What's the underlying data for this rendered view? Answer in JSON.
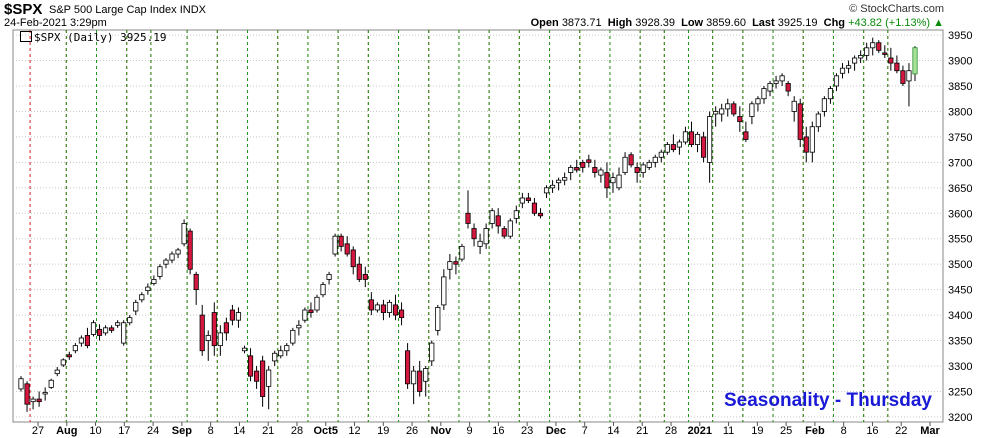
{
  "header": {
    "symbol": "$SPX",
    "name": "S&P 500 Large Cap Index",
    "exchange": "INDX",
    "datetime": "24-Feb-2021 3:29pm",
    "brand": "© StockCharts.com",
    "open_label": "Open",
    "open": "3873.71",
    "high_label": "High",
    "high": "3928.39",
    "low_label": "Low",
    "low": "3859.60",
    "last_label": "Last",
    "last": "3925.19",
    "chg_label": "Chg",
    "chg": "+43.82 (+1.13%)",
    "legend": "$SPX (Daily) 3925.19"
  },
  "annotation": "Seasonality - Thursday",
  "colors": {
    "up_fill": "#ffffff",
    "down_fill": "#d3173f",
    "latest_fill": "#a6e39a",
    "monday_line": "#d61e1e",
    "friday_line": "#1f9a1f"
  },
  "chart_data": {
    "type": "candlestick",
    "title": "$SPX (Daily) 3925.19",
    "ylim": [
      3190,
      3960
    ],
    "y_ticks": [
      3200,
      3250,
      3300,
      3350,
      3400,
      3450,
      3500,
      3550,
      3600,
      3650,
      3700,
      3750,
      3800,
      3850,
      3900,
      3950
    ],
    "x_ticks": [
      "27",
      "Aug",
      "10",
      "17",
      "24",
      "Sep",
      "8",
      "14",
      "21",
      "28",
      "Oct5",
      "12",
      "19",
      "26",
      "Nov",
      "9",
      "16",
      "23",
      "Dec",
      "7",
      "14",
      "21",
      "28",
      "2021",
      "11",
      "19",
      "25",
      "Feb",
      "8",
      "16",
      "22",
      "Mar"
    ],
    "grid": true,
    "vertical_markers": "red dashed line at each week start, green dashed line at each week end",
    "candles": [
      [
        3255,
        3280,
        3250,
        3275
      ],
      [
        3265,
        3270,
        3210,
        3225
      ],
      [
        3230,
        3240,
        3215,
        3235
      ],
      [
        3235,
        3250,
        3220,
        3230
      ],
      [
        3245,
        3258,
        3232,
        3248
      ],
      [
        3258,
        3275,
        3255,
        3272
      ],
      [
        3285,
        3298,
        3280,
        3292
      ],
      [
        3302,
        3315,
        3298,
        3312
      ],
      [
        3322,
        3328,
        3312,
        3318
      ],
      [
        3330,
        3345,
        3325,
        3340
      ],
      [
        3345,
        3360,
        3338,
        3355
      ],
      [
        3360,
        3375,
        3335,
        3340
      ],
      [
        3362,
        3390,
        3358,
        3385
      ],
      [
        3372,
        3382,
        3350,
        3360
      ],
      [
        3365,
        3380,
        3360,
        3375
      ],
      [
        3375,
        3380,
        3365,
        3370
      ],
      [
        3380,
        3390,
        3375,
        3385
      ],
      [
        3345,
        3390,
        3340,
        3385
      ],
      [
        3385,
        3400,
        3380,
        3395
      ],
      [
        3408,
        3430,
        3400,
        3425
      ],
      [
        3430,
        3445,
        3425,
        3440
      ],
      [
        3448,
        3462,
        3440,
        3455
      ],
      [
        3462,
        3478,
        3458,
        3470
      ],
      [
        3476,
        3500,
        3470,
        3495
      ],
      [
        3500,
        3512,
        3492,
        3508
      ],
      [
        3508,
        3525,
        3502,
        3520
      ],
      [
        3520,
        3532,
        3512,
        3528
      ],
      [
        3540,
        3588,
        3535,
        3580
      ],
      [
        3565,
        3570,
        3480,
        3490
      ],
      [
        3480,
        3485,
        3420,
        3450
      ],
      [
        3400,
        3420,
        3320,
        3330
      ],
      [
        3350,
        3370,
        3310,
        3360
      ],
      [
        3405,
        3425,
        3320,
        3340
      ],
      [
        3340,
        3380,
        3320,
        3365
      ],
      [
        3385,
        3395,
        3350,
        3365
      ],
      [
        3410,
        3420,
        3380,
        3390
      ],
      [
        3390,
        3415,
        3375,
        3405
      ],
      [
        3330,
        3340,
        3325,
        3335
      ],
      [
        3320,
        3335,
        3270,
        3280
      ],
      [
        3290,
        3300,
        3255,
        3270
      ],
      [
        3310,
        3320,
        3220,
        3240
      ],
      [
        3260,
        3300,
        3215,
        3292
      ],
      [
        3310,
        3330,
        3300,
        3325
      ],
      [
        3320,
        3340,
        3315,
        3330
      ],
      [
        3330,
        3345,
        3320,
        3340
      ],
      [
        3345,
        3375,
        3340,
        3370
      ],
      [
        3375,
        3390,
        3360,
        3380
      ],
      [
        3390,
        3415,
        3385,
        3410
      ],
      [
        3410,
        3425,
        3395,
        3405
      ],
      [
        3410,
        3440,
        3405,
        3435
      ],
      [
        3440,
        3465,
        3435,
        3460
      ],
      [
        3470,
        3485,
        3460,
        3480
      ],
      [
        3520,
        3560,
        3515,
        3555
      ],
      [
        3555,
        3560,
        3525,
        3535
      ],
      [
        3540,
        3555,
        3515,
        3520
      ],
      [
        3528,
        3535,
        3480,
        3495
      ],
      [
        3500,
        3515,
        3465,
        3470
      ],
      [
        3480,
        3495,
        3455,
        3470
      ],
      [
        3430,
        3445,
        3400,
        3410
      ],
      [
        3410,
        3425,
        3405,
        3420
      ],
      [
        3420,
        3430,
        3390,
        3405
      ],
      [
        3405,
        3430,
        3395,
        3425
      ],
      [
        3420,
        3440,
        3390,
        3400
      ],
      [
        3410,
        3425,
        3380,
        3395
      ],
      [
        3330,
        3345,
        3255,
        3265
      ],
      [
        3265,
        3300,
        3225,
        3290
      ],
      [
        3290,
        3310,
        3240,
        3250
      ],
      [
        3270,
        3300,
        3240,
        3295
      ],
      [
        3310,
        3350,
        3300,
        3345
      ],
      [
        3370,
        3420,
        3360,
        3415
      ],
      [
        3420,
        3490,
        3410,
        3475
      ],
      [
        3490,
        3520,
        3470,
        3505
      ],
      [
        3505,
        3515,
        3480,
        3500
      ],
      [
        3510,
        3540,
        3505,
        3535
      ],
      [
        3600,
        3645,
        3570,
        3580
      ],
      [
        3570,
        3580,
        3535,
        3550
      ],
      [
        3535,
        3560,
        3520,
        3545
      ],
      [
        3540,
        3580,
        3530,
        3570
      ],
      [
        3580,
        3610,
        3570,
        3605
      ],
      [
        3595,
        3610,
        3560,
        3575
      ],
      [
        3570,
        3575,
        3550,
        3555
      ],
      [
        3555,
        3590,
        3550,
        3585
      ],
      [
        3590,
        3615,
        3580,
        3605
      ],
      [
        3620,
        3640,
        3610,
        3630
      ],
      [
        3630,
        3640,
        3620,
        3625
      ],
      [
        3620,
        3630,
        3595,
        3600
      ],
      [
        3600,
        3610,
        3590,
        3595
      ],
      [
        3640,
        3655,
        3630,
        3650
      ],
      [
        3650,
        3665,
        3640,
        3655
      ],
      [
        3660,
        3670,
        3645,
        3665
      ],
      [
        3665,
        3680,
        3655,
        3670
      ],
      [
        3680,
        3695,
        3665,
        3690
      ],
      [
        3690,
        3705,
        3680,
        3685
      ],
      [
        3700,
        3705,
        3680,
        3690
      ],
      [
        3705,
        3715,
        3690,
        3700
      ],
      [
        3690,
        3705,
        3670,
        3680
      ],
      [
        3675,
        3690,
        3660,
        3685
      ],
      [
        3680,
        3700,
        3630,
        3650
      ],
      [
        3660,
        3680,
        3640,
        3670
      ],
      [
        3650,
        3690,
        3645,
        3675
      ],
      [
        3680,
        3720,
        3675,
        3710
      ],
      [
        3715,
        3720,
        3690,
        3695
      ],
      [
        3690,
        3700,
        3660,
        3680
      ],
      [
        3680,
        3700,
        3670,
        3695
      ],
      [
        3690,
        3705,
        3685,
        3700
      ],
      [
        3700,
        3715,
        3690,
        3710
      ],
      [
        3710,
        3725,
        3700,
        3720
      ],
      [
        3720,
        3740,
        3715,
        3735
      ],
      [
        3735,
        3755,
        3720,
        3725
      ],
      [
        3730,
        3745,
        3715,
        3740
      ],
      [
        3740,
        3770,
        3735,
        3760
      ],
      [
        3760,
        3780,
        3730,
        3735
      ],
      [
        3735,
        3760,
        3720,
        3755
      ],
      [
        3750,
        3760,
        3700,
        3710
      ],
      [
        3700,
        3800,
        3660,
        3790
      ],
      [
        3795,
        3810,
        3770,
        3800
      ],
      [
        3795,
        3815,
        3780,
        3805
      ],
      [
        3805,
        3825,
        3790,
        3815
      ],
      [
        3815,
        3820,
        3790,
        3795
      ],
      [
        3790,
        3810,
        3760,
        3780
      ],
      [
        3760,
        3780,
        3740,
        3745
      ],
      [
        3790,
        3820,
        3775,
        3815
      ],
      [
        3815,
        3830,
        3800,
        3825
      ],
      [
        3825,
        3850,
        3815,
        3845
      ],
      [
        3840,
        3860,
        3830,
        3855
      ],
      [
        3855,
        3870,
        3845,
        3860
      ],
      [
        3860,
        3875,
        3850,
        3870
      ],
      [
        3855,
        3860,
        3830,
        3840
      ],
      [
        3800,
        3830,
        3780,
        3820
      ],
      [
        3815,
        3825,
        3730,
        3745
      ],
      [
        3750,
        3770,
        3700,
        3720
      ],
      [
        3720,
        3780,
        3700,
        3770
      ],
      [
        3770,
        3800,
        3760,
        3795
      ],
      [
        3800,
        3830,
        3790,
        3825
      ],
      [
        3825,
        3850,
        3815,
        3845
      ],
      [
        3850,
        3875,
        3840,
        3870
      ],
      [
        3875,
        3895,
        3865,
        3885
      ],
      [
        3885,
        3900,
        3875,
        3890
      ],
      [
        3895,
        3910,
        3880,
        3905
      ],
      [
        3905,
        3920,
        3895,
        3910
      ],
      [
        3910,
        3935,
        3900,
        3925
      ],
      [
        3925,
        3945,
        3910,
        3935
      ],
      [
        3935,
        3940,
        3915,
        3920
      ],
      [
        3915,
        3930,
        3905,
        3912
      ],
      [
        3905,
        3925,
        3880,
        3895
      ],
      [
        3895,
        3910,
        3875,
        3880
      ],
      [
        3880,
        3890,
        3850,
        3855
      ],
      [
        3860,
        3895,
        3810,
        3880
      ],
      [
        3873.71,
        3928.39,
        3859.6,
        3925.19
      ]
    ],
    "week_start_candles": [
      2,
      8,
      13,
      18,
      22,
      28,
      33,
      38,
      43,
      48,
      53,
      58,
      63,
      68,
      73,
      78,
      83,
      88,
      93,
      98,
      103,
      107,
      111,
      115,
      120,
      125,
      130,
      135,
      140,
      144
    ],
    "week_end_candles": [
      7,
      12,
      17,
      21,
      27,
      32,
      37,
      42,
      47,
      52,
      57,
      62,
      67,
      72,
      77,
      82,
      87,
      92,
      97,
      102,
      106,
      110,
      114,
      119,
      124,
      129,
      134,
      139,
      143
    ]
  }
}
